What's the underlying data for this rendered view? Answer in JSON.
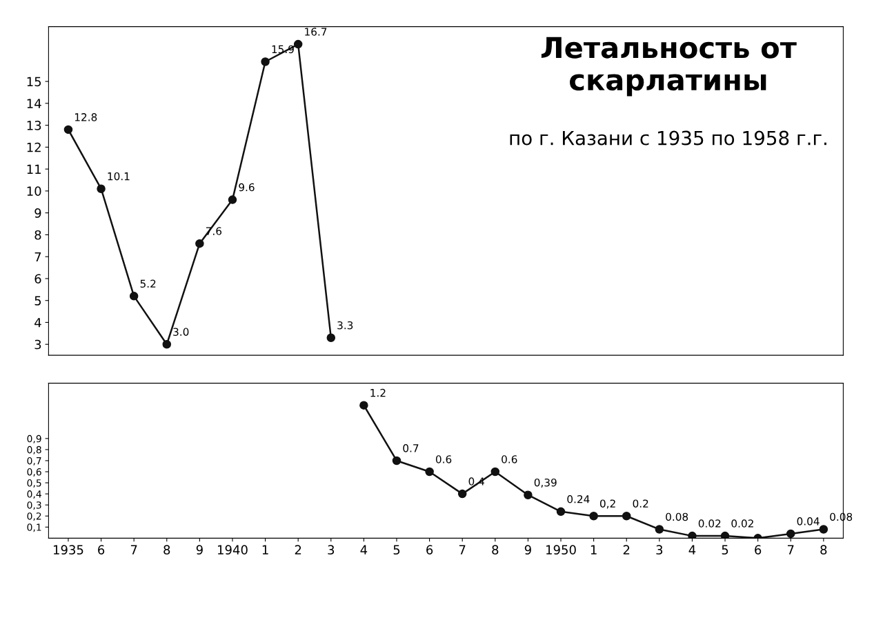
{
  "chart_data": [
    {
      "type": "line",
      "title": "Летальность от скарлатины",
      "subtitle": "по г. Казани с 1935 по 1958 г.г.",
      "categories": [
        "1935",
        "6",
        "7",
        "8",
        "9",
        "1940",
        "1",
        "2",
        "3",
        "4",
        "5",
        "6",
        "7",
        "8",
        "9",
        "1950",
        "1",
        "2",
        "3",
        "4",
        "5",
        "6",
        "7",
        "8"
      ],
      "series": [
        {
          "color": "#111111",
          "values": [
            12.8,
            10.1,
            5.2,
            3.0,
            7.6,
            9.6,
            15.9,
            16.7,
            3.3,
            null,
            null,
            null,
            null,
            null,
            null,
            null,
            null,
            null,
            null,
            null,
            null,
            null,
            null,
            null
          ],
          "value_labels": [
            "12.8",
            "10.1",
            "5.2",
            "3.0",
            "7.6",
            "9.6",
            "15.9",
            "16.7",
            "3.3",
            null,
            null,
            null,
            null,
            null,
            null,
            null,
            null,
            null,
            null,
            null,
            null,
            null,
            null,
            null
          ]
        }
      ],
      "ylim": [
        2.5,
        17.5
      ],
      "yticks": [
        3,
        4,
        5,
        6,
        7,
        8,
        9,
        10,
        11,
        12,
        13,
        14,
        15
      ],
      "tick_labels": "y",
      "marker": "circle",
      "grid": false
    },
    {
      "type": "line",
      "categories": [
        "1935",
        "6",
        "7",
        "8",
        "9",
        "1940",
        "1",
        "2",
        "3",
        "4",
        "5",
        "6",
        "7",
        "8",
        "9",
        "1950",
        "1",
        "2",
        "3",
        "4",
        "5",
        "6",
        "7",
        "8"
      ],
      "series": [
        {
          "color": "#111111",
          "values": [
            null,
            null,
            null,
            null,
            null,
            null,
            null,
            null,
            null,
            1.2,
            0.7,
            0.6,
            0.4,
            0.6,
            0.39,
            0.24,
            0.2,
            0.2,
            0.08,
            0.02,
            0.02,
            0.0,
            0.04,
            0.08
          ],
          "value_labels": [
            null,
            null,
            null,
            null,
            null,
            null,
            null,
            null,
            null,
            "1.2",
            "0.7",
            "0.6",
            "0.4",
            "0.6",
            "0,39",
            "0.24",
            "0,2",
            "0.2",
            "0.08",
            "0.02",
            "0.02",
            null,
            "0.04",
            "0.08"
          ]
        }
      ],
      "ylim": [
        0,
        1.4
      ],
      "yticks": [
        {
          "value": 0.1,
          "label": "0,1"
        },
        {
          "value": 0.2,
          "label": "0,2"
        },
        {
          "value": 0.3,
          "label": "0,3"
        },
        {
          "value": 0.4,
          "label": "0,4"
        },
        {
          "value": 0.5,
          "label": "0,5"
        },
        {
          "value": 0.6,
          "label": "0,6"
        },
        {
          "value": 0.7,
          "label": "0,7"
        },
        {
          "value": 0.8,
          "label": "0,8"
        },
        {
          "value": 0.9,
          "label": "0,9"
        }
      ],
      "marker": "circle",
      "grid": false
    }
  ]
}
